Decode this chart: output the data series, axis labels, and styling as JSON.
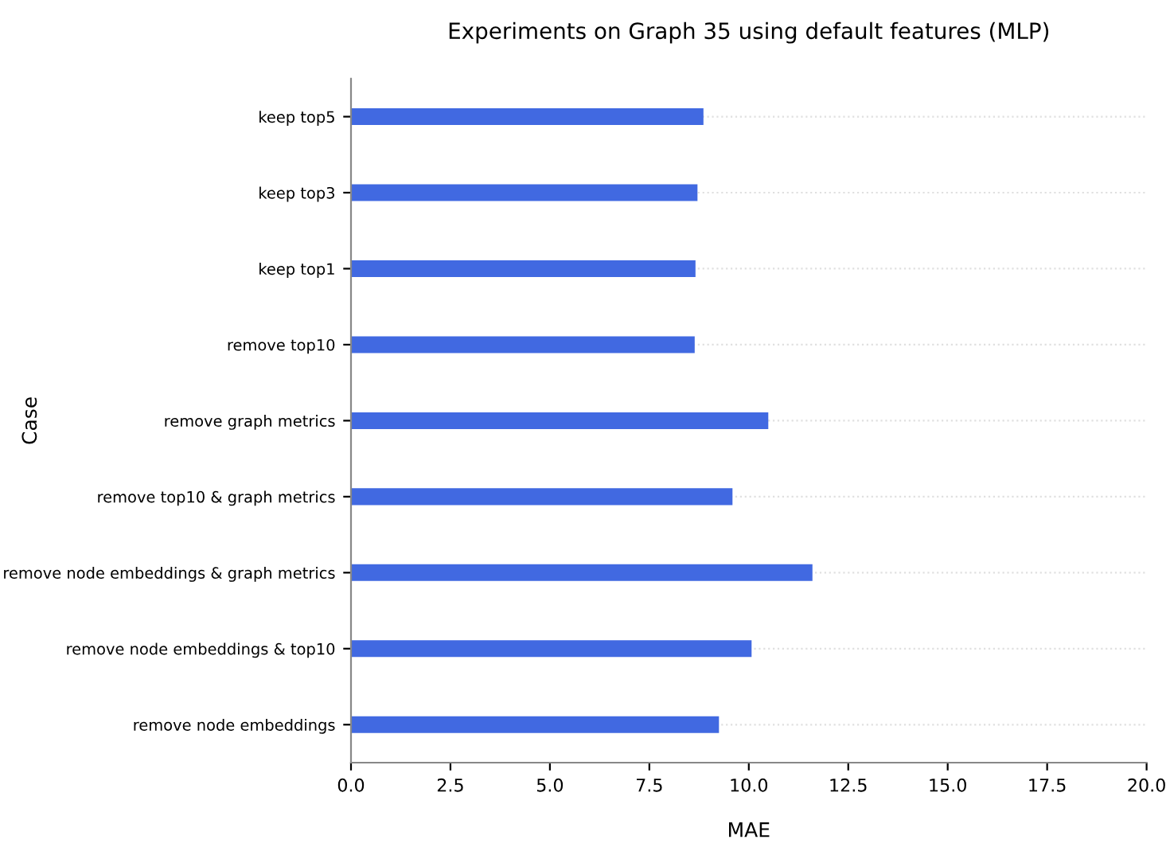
{
  "chart_data": {
    "type": "bar",
    "orientation": "horizontal",
    "title": "Experiments on Graph 35 using default features (MLP)",
    "xlabel": "MAE",
    "ylabel": "Case",
    "categories": [
      "keep top5",
      "keep top3",
      "keep top1",
      "remove top10",
      "remove graph metrics",
      "remove top10 & graph metrics",
      "remove node embeddings & graph metrics",
      "remove node embeddings & top10",
      "remove node embeddings"
    ],
    "values": [
      8.86,
      8.71,
      8.66,
      8.64,
      10.49,
      9.59,
      11.6,
      10.07,
      9.25
    ],
    "color": "#4169e1",
    "xlim": [
      0,
      20
    ],
    "xticks": [
      {
        "value": 0,
        "label": "0.0"
      },
      {
        "value": 2.5,
        "label": "2.5"
      },
      {
        "value": 5,
        "label": "5.0"
      },
      {
        "value": 7.5,
        "label": "7.5"
      },
      {
        "value": 10,
        "label": "10.0"
      },
      {
        "value": 12.5,
        "label": "12.5"
      },
      {
        "value": 15,
        "label": "15.0"
      },
      {
        "value": 17.5,
        "label": "17.5"
      },
      {
        "value": 20,
        "label": "20.0"
      }
    ],
    "grid": "y",
    "legend": false
  }
}
